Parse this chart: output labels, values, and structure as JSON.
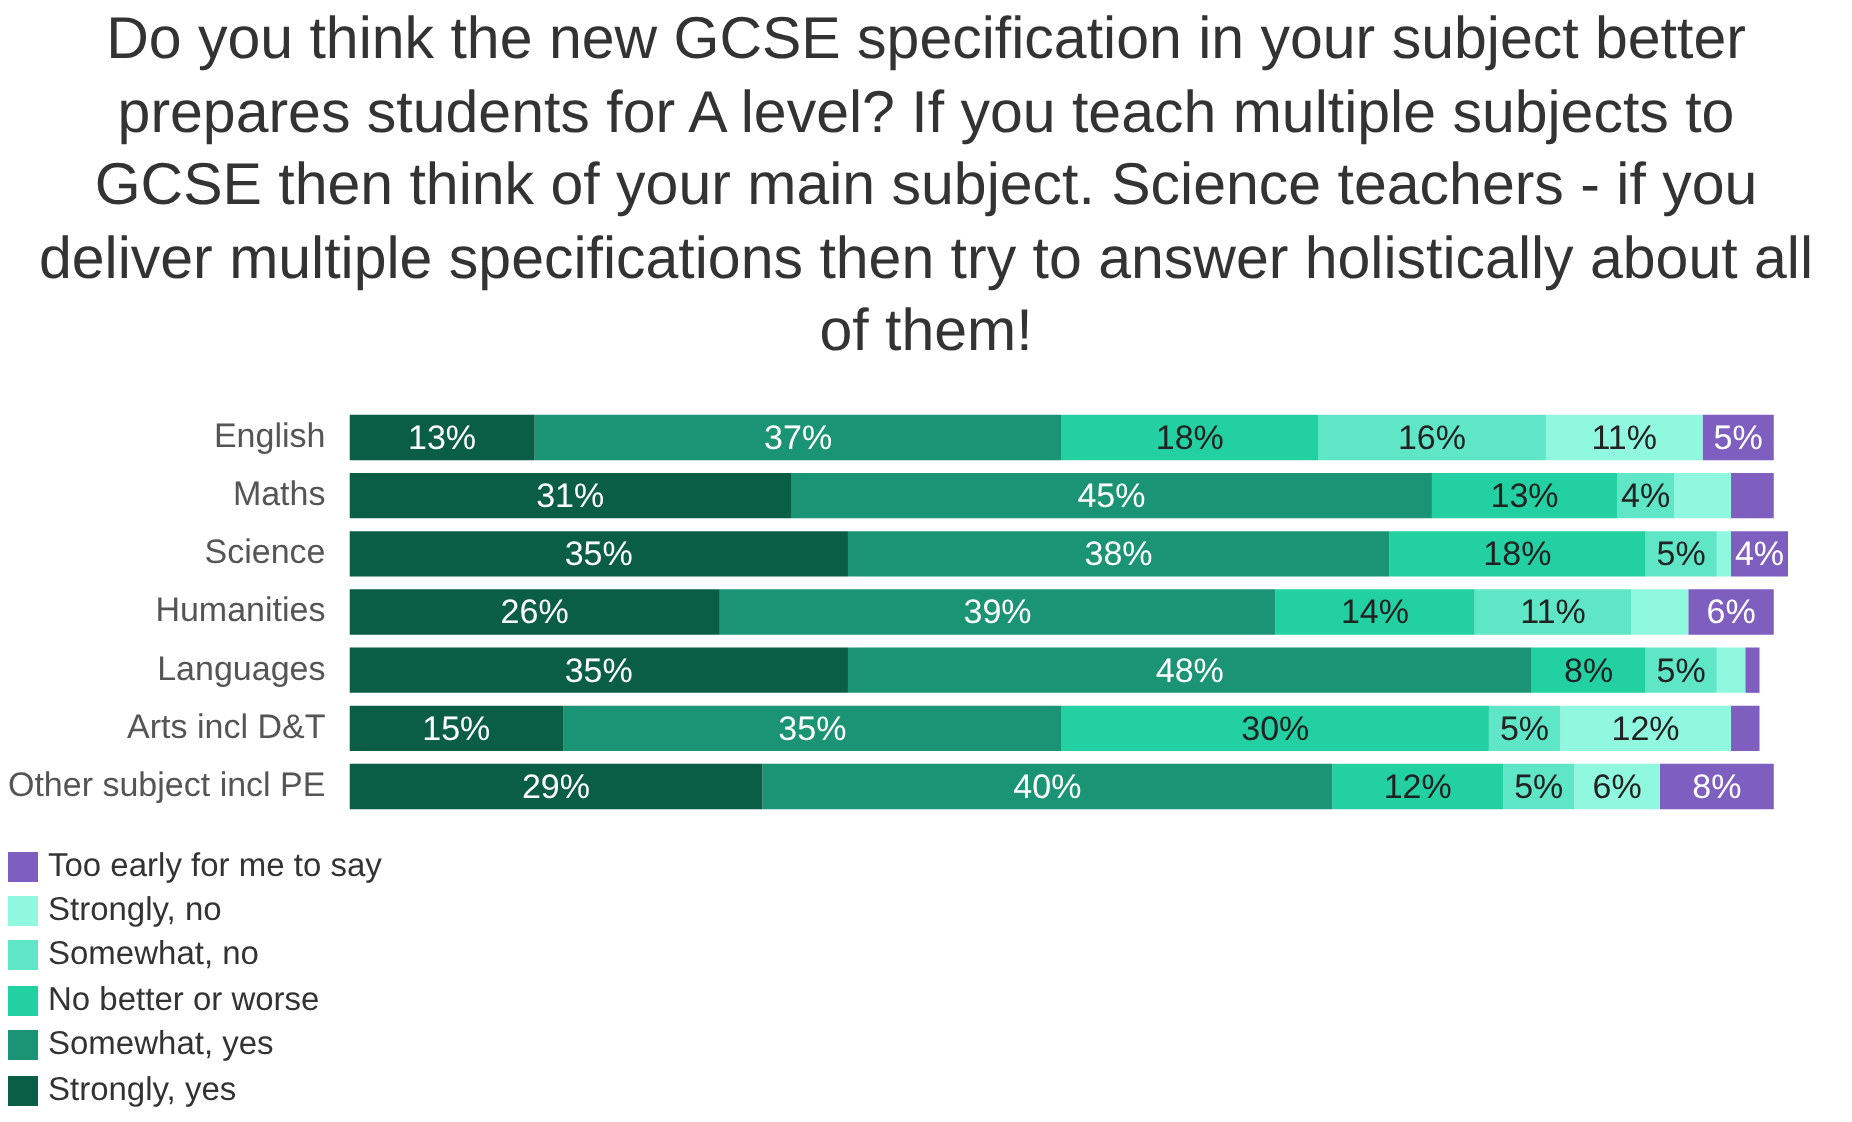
{
  "chart_data": {
    "type": "bar",
    "orientation": "horizontal",
    "stacked": true,
    "title": "Do you think the new GCSE specification in your subject better prepares students for A level? If you teach multiple subjects to GCSE then think of your main subject. Science teachers - if you deliver multiple specifications then try to answer holistically about all of them!",
    "categories": [
      "English",
      "Maths",
      "Science",
      "Humanities",
      "Languages",
      "Arts incl D&T",
      "Other subject incl PE"
    ],
    "xlim": [
      0,
      101
    ],
    "tick_labels": "y",
    "legend": "bottom left",
    "series": [
      {
        "name": "Strongly, yes",
        "color": "#0a5e45",
        "values": [
          13,
          31,
          35,
          26,
          35,
          15,
          29
        ],
        "value_labels": [
          "13%",
          "31%",
          "35%",
          "26%",
          "35%",
          "15%",
          "29%"
        ]
      },
      {
        "name": "Somewhat, yes",
        "color": "#1a9474",
        "values": [
          37,
          45,
          38,
          39,
          48,
          35,
          40
        ],
        "value_labels": [
          "37%",
          "45%",
          "38%",
          "39%",
          "48%",
          "35%",
          "40%"
        ]
      },
      {
        "name": "No better or worse",
        "color": "#22d0a2",
        "values": [
          18,
          13,
          18,
          14,
          8,
          30,
          12
        ],
        "value_labels": [
          "18%",
          "13%",
          "18%",
          "14%",
          "8%",
          "30%",
          "12%"
        ]
      },
      {
        "name": "Somewhat, no",
        "color": "#5fe6c6",
        "values": [
          16,
          4,
          5,
          11,
          5,
          5,
          5
        ],
        "value_labels": [
          "16%",
          "4%",
          "5%",
          "11%",
          "5%",
          "5%",
          "5%"
        ]
      },
      {
        "name": "Strongly, no",
        "color": "#8ff8df",
        "values": [
          11,
          4,
          1,
          4,
          2,
          12,
          6
        ],
        "value_labels": [
          "11%",
          null,
          null,
          null,
          null,
          "12%",
          "6%"
        ]
      },
      {
        "name": "Too early for me to say",
        "color": "#7e5fc0",
        "values": [
          5,
          3,
          4,
          6,
          1,
          2,
          8
        ],
        "value_labels": [
          "5%",
          null,
          "4%",
          "6%",
          null,
          null,
          "8%"
        ]
      }
    ]
  }
}
